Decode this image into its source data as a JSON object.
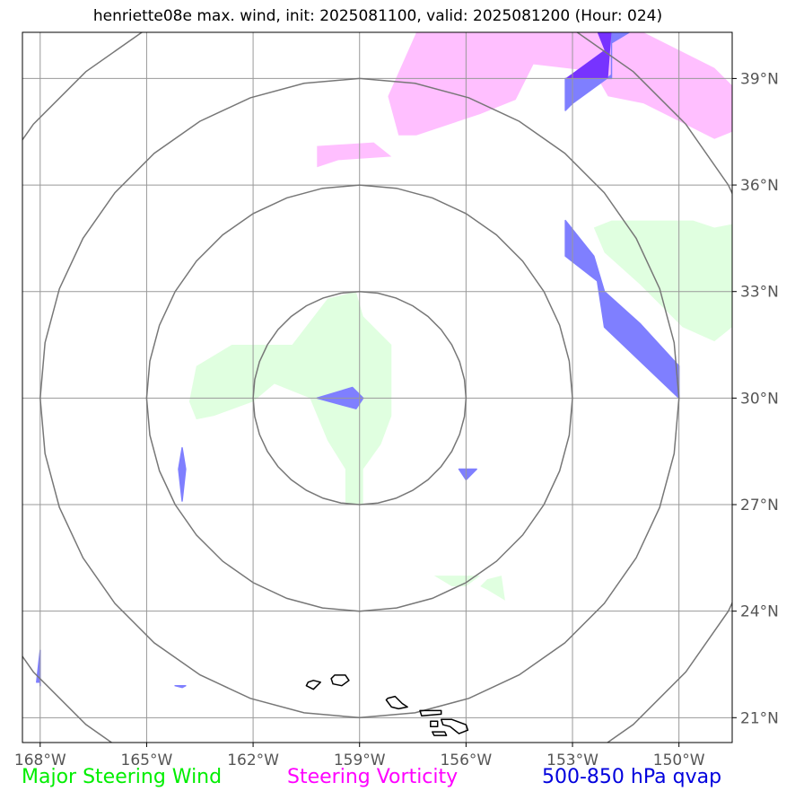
{
  "title": "henriette08e max. wind, init: 2025081100, valid: 2025081200 (Hour: 024)",
  "map": {
    "lon_range": [
      -168.5,
      -148.5
    ],
    "lat_range": [
      20.3,
      40.3
    ],
    "lon_ticks": [
      {
        "value": -168,
        "label": "168°W"
      },
      {
        "value": -165,
        "label": "165°W"
      },
      {
        "value": -162,
        "label": "162°W"
      },
      {
        "value": -159,
        "label": "159°W"
      },
      {
        "value": -156,
        "label": "156°W"
      },
      {
        "value": -153,
        "label": "153°W"
      },
      {
        "value": -150,
        "label": "150°W"
      }
    ],
    "lat_ticks": [
      {
        "value": 21,
        "label": "21°N"
      },
      {
        "value": 24,
        "label": "24°N"
      },
      {
        "value": 27,
        "label": "27°N"
      },
      {
        "value": 30,
        "label": "30°N"
      },
      {
        "value": 33,
        "label": "33°N"
      },
      {
        "value": 36,
        "label": "36°N"
      },
      {
        "value": 39,
        "label": "39°N"
      }
    ],
    "grid": true,
    "storm_center": {
      "lon": -159.0,
      "lat": 30.0
    },
    "range_rings_deg": [
      3,
      6,
      9,
      12
    ],
    "colors": {
      "steering_wind": "#00ee00",
      "steering_wind_fill": "#e0ffe0",
      "vorticity_fill": "#ffbfff",
      "qvap_fill": "#7f7fff",
      "qvap_over_vort": "#7733ff",
      "rings": "#777777",
      "grid": "#999999",
      "coast": "#000000"
    },
    "steering_wind_areas": [
      [
        [
          -161.9,
          31.5
        ],
        [
          -160.9,
          31.5
        ],
        [
          -159.9,
          32.8
        ],
        [
          -159.1,
          33.0
        ],
        [
          -158.9,
          32.3
        ],
        [
          -158.1,
          31.5
        ],
        [
          -158.1,
          29.5
        ],
        [
          -158.4,
          28.7
        ],
        [
          -158.9,
          28.0
        ],
        [
          -158.9,
          27.0
        ],
        [
          -159.4,
          27.0
        ],
        [
          -159.4,
          28.0
        ],
        [
          -159.9,
          28.8
        ],
        [
          -160.4,
          30.0
        ],
        [
          -161.4,
          30.4
        ],
        [
          -162.0,
          29.9
        ],
        [
          -163.1,
          29.5
        ],
        [
          -163.6,
          29.4
        ],
        [
          -163.8,
          29.9
        ],
        [
          -163.6,
          30.9
        ],
        [
          -162.6,
          31.5
        ]
      ],
      [
        [
          -151.9,
          35.0
        ],
        [
          -149.6,
          35.0
        ],
        [
          -149.0,
          34.8
        ],
        [
          -148.5,
          34.9
        ],
        [
          -148.5,
          32.0
        ],
        [
          -149.0,
          31.6
        ],
        [
          -149.9,
          32.0
        ],
        [
          -151.1,
          33.2
        ],
        [
          -152.1,
          34.1
        ],
        [
          -152.4,
          34.8
        ]
      ],
      [
        [
          -156.9,
          25.0
        ],
        [
          -155.6,
          25.0
        ],
        [
          -156.0,
          24.7
        ],
        [
          -156.4,
          24.7
        ]
      ],
      [
        [
          -155.4,
          24.9
        ],
        [
          -155.0,
          25.0
        ],
        [
          -154.9,
          24.3
        ],
        [
          -155.4,
          24.6
        ],
        [
          -155.6,
          24.7
        ]
      ]
    ],
    "vorticity_areas": [
      [
        [
          -157.4,
          40.3
        ],
        [
          -151.0,
          40.3
        ],
        [
          -149.0,
          39.3
        ],
        [
          -148.5,
          38.8
        ],
        [
          -148.5,
          37.5
        ],
        [
          -149.0,
          37.3
        ],
        [
          -150.0,
          37.8
        ],
        [
          -151.0,
          38.3
        ],
        [
          -152.0,
          38.5
        ],
        [
          -152.4,
          39.2
        ],
        [
          -154.1,
          39.4
        ],
        [
          -154.6,
          38.4
        ],
        [
          -155.6,
          38.0
        ],
        [
          -157.4,
          37.4
        ],
        [
          -157.9,
          37.4
        ],
        [
          -158.2,
          38.5
        ]
      ],
      [
        [
          -160.2,
          37.1
        ],
        [
          -158.6,
          37.2
        ],
        [
          -158.1,
          36.8
        ],
        [
          -159.6,
          36.7
        ],
        [
          -160.2,
          36.5
        ],
        [
          -160.2,
          36.7
        ]
      ]
    ],
    "qvap_areas": [
      [
        [
          -153.2,
          35.0
        ],
        [
          -153.2,
          34.0
        ],
        [
          -152.3,
          33.3
        ],
        [
          -152.1,
          32.0
        ],
        [
          -150.0,
          30.0
        ],
        [
          -150.0,
          30.9
        ],
        [
          -151.1,
          32.1
        ],
        [
          -152.1,
          33.0
        ],
        [
          -152.4,
          34.0
        ]
      ],
      [
        [
          -153.2,
          39.0
        ],
        [
          -151.9,
          39.0
        ],
        [
          -151.9,
          40.0
        ],
        [
          -151.4,
          40.3
        ],
        [
          -151.9,
          40.3
        ],
        [
          -151.9,
          39.1
        ],
        [
          -153.0,
          38.3
        ],
        [
          -153.2,
          38.1
        ]
      ],
      [
        [
          -160.2,
          30.0
        ],
        [
          -159.2,
          30.3
        ],
        [
          -158.9,
          30.0
        ],
        [
          -159.1,
          29.7
        ]
      ],
      [
        [
          -156.2,
          28.0
        ],
        [
          -155.7,
          28.0
        ],
        [
          -156.0,
          27.7
        ]
      ],
      [
        [
          -164.0,
          28.6
        ],
        [
          -163.9,
          28.0
        ],
        [
          -164.0,
          27.1
        ],
        [
          -164.1,
          28.0
        ]
      ],
      [
        [
          -168.1,
          22.0
        ],
        [
          -168.0,
          22.0
        ],
        [
          -168.0,
          21.9
        ],
        [
          -168.0,
          22.9
        ],
        [
          -168.1,
          22.0
        ]
      ],
      [
        [
          -164.2,
          21.9
        ],
        [
          -163.9,
          21.9
        ],
        [
          -164.0,
          21.85
        ]
      ]
    ],
    "qvap_over_vort_areas": [
      [
        [
          -153.2,
          39.0
        ],
        [
          -152.0,
          39.0
        ],
        [
          -151.9,
          40.3
        ],
        [
          -152.3,
          40.3
        ],
        [
          -152.1,
          39.8
        ]
      ]
    ],
    "islands": [
      [
        [
          -160.5,
          21.9
        ],
        [
          -160.3,
          21.8
        ],
        [
          -160.1,
          22.0
        ],
        [
          -160.3,
          22.05
        ],
        [
          -160.45,
          22.0
        ]
      ],
      [
        [
          -159.7,
          22.2
        ],
        [
          -159.4,
          22.2
        ],
        [
          -159.3,
          22.05
        ],
        [
          -159.5,
          21.9
        ],
        [
          -159.75,
          21.95
        ],
        [
          -159.8,
          22.1
        ]
      ],
      [
        [
          -158.2,
          21.55
        ],
        [
          -158.0,
          21.6
        ],
        [
          -157.8,
          21.4
        ],
        [
          -157.65,
          21.3
        ],
        [
          -157.9,
          21.25
        ],
        [
          -158.1,
          21.3
        ],
        [
          -158.25,
          21.5
        ]
      ],
      [
        [
          -157.3,
          21.2
        ],
        [
          -156.7,
          21.2
        ],
        [
          -156.7,
          21.1
        ],
        [
          -157.25,
          21.05
        ]
      ],
      [
        [
          -156.7,
          20.95
        ],
        [
          -156.4,
          20.95
        ],
        [
          -156.0,
          20.8
        ],
        [
          -155.95,
          20.65
        ],
        [
          -156.2,
          20.55
        ],
        [
          -156.45,
          20.75
        ],
        [
          -156.65,
          20.8
        ]
      ],
      [
        [
          -157.0,
          20.9
        ],
        [
          -156.8,
          20.9
        ],
        [
          -156.8,
          20.75
        ],
        [
          -157.0,
          20.75
        ]
      ],
      [
        [
          -156.95,
          20.6
        ],
        [
          -156.6,
          20.6
        ],
        [
          -156.55,
          20.5
        ],
        [
          -156.9,
          20.5
        ]
      ]
    ]
  },
  "legend": {
    "steering_wind": "Major Steering Wind",
    "vorticity": "Steering Vorticity",
    "qvap": "500-850 hPa qvap"
  }
}
